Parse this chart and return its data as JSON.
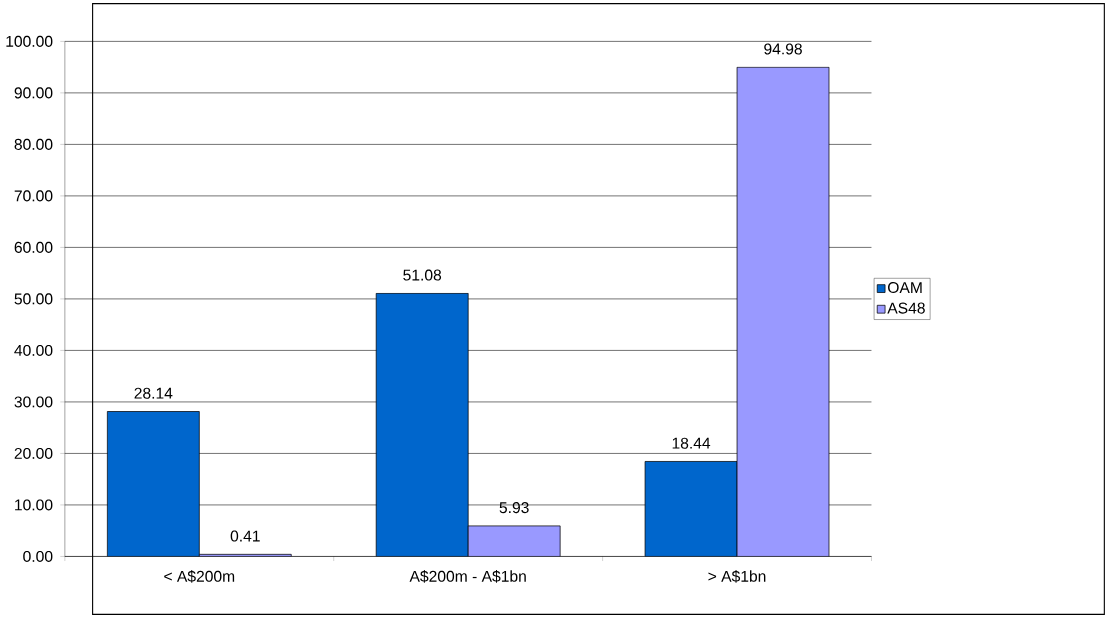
{
  "chart_data": {
    "type": "bar",
    "categories": [
      "< A$200m",
      "A$200m - A$1bn",
      "> A$1bn"
    ],
    "series": [
      {
        "name": "OAM",
        "color": "#0066cc",
        "values": [
          28.14,
          51.08,
          18.44
        ]
      },
      {
        "name": "AS48",
        "color": "#9999ff",
        "values": [
          0.41,
          5.93,
          94.98
        ]
      }
    ],
    "ylim": [
      0,
      100
    ],
    "yticks": [
      {
        "value": 0,
        "label": "0.00"
      },
      {
        "value": 10,
        "label": "10.00"
      },
      {
        "value": 20,
        "label": "20.00"
      },
      {
        "value": 30,
        "label": "30.00"
      },
      {
        "value": 40,
        "label": "40.00"
      },
      {
        "value": 50,
        "label": "50.00"
      },
      {
        "value": 60,
        "label": "60.00"
      },
      {
        "value": 70,
        "label": "70.00"
      },
      {
        "value": 80,
        "label": "80.00"
      },
      {
        "value": 90,
        "label": "90.00"
      },
      {
        "value": 100,
        "label": "100.00"
      }
    ],
    "grid": "y",
    "legend": "right",
    "data_labels": true
  }
}
